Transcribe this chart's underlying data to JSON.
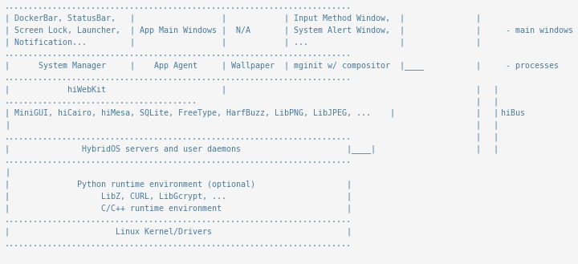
{
  "bg_color": "#f5f5f5",
  "text_color": "#4a7a9b",
  "font_family": "monospace",
  "font_size": 7.2,
  "figsize": [
    7.2,
    3.29
  ],
  "dpi": 100,
  "lines": [
    "........................................................................",
    "| DockerBar, StatusBar,   |                  |            | Input Method Window,  |",
    "| Screen Lock, Launcher,  | App Main Windows |  N/A       | System Alert Window,  |",
    "| Notification...         |                  |            | ...                   |",
    "........................................................................",
    "|      System Manager     |    App Agent     | Wallpaper  | mginit w/ compositor  |____",
    "........................................................................",
    "|            hiWebKit                        |",
    "........................................",
    "| MiniGUI, hiCairo, hiMesa, SQLite, FreeType, HarfBuzz, LibPNG, LibJPEG, ...    |",
    "|",
    "........................................................................",
    "|               HybridOS servers and user daemons                      |____|",
    "........................................................................",
    "|",
    "|              Python runtime environment (optional)                   |",
    "|                   LibZ, CURL, LibGcrypt, ...                         |",
    "|                   C/C++ runtime environment                          |",
    "........................................................................",
    "|                      Linux Kernel/Drivers                            |",
    "........................................................................"
  ],
  "right_annotations": [
    {
      "line_idx": 2,
      "text": "- main windows"
    },
    {
      "line_idx": 5,
      "text": "- processes"
    }
  ],
  "hibus_label_line": 9,
  "hibus_text": "hiBus"
}
